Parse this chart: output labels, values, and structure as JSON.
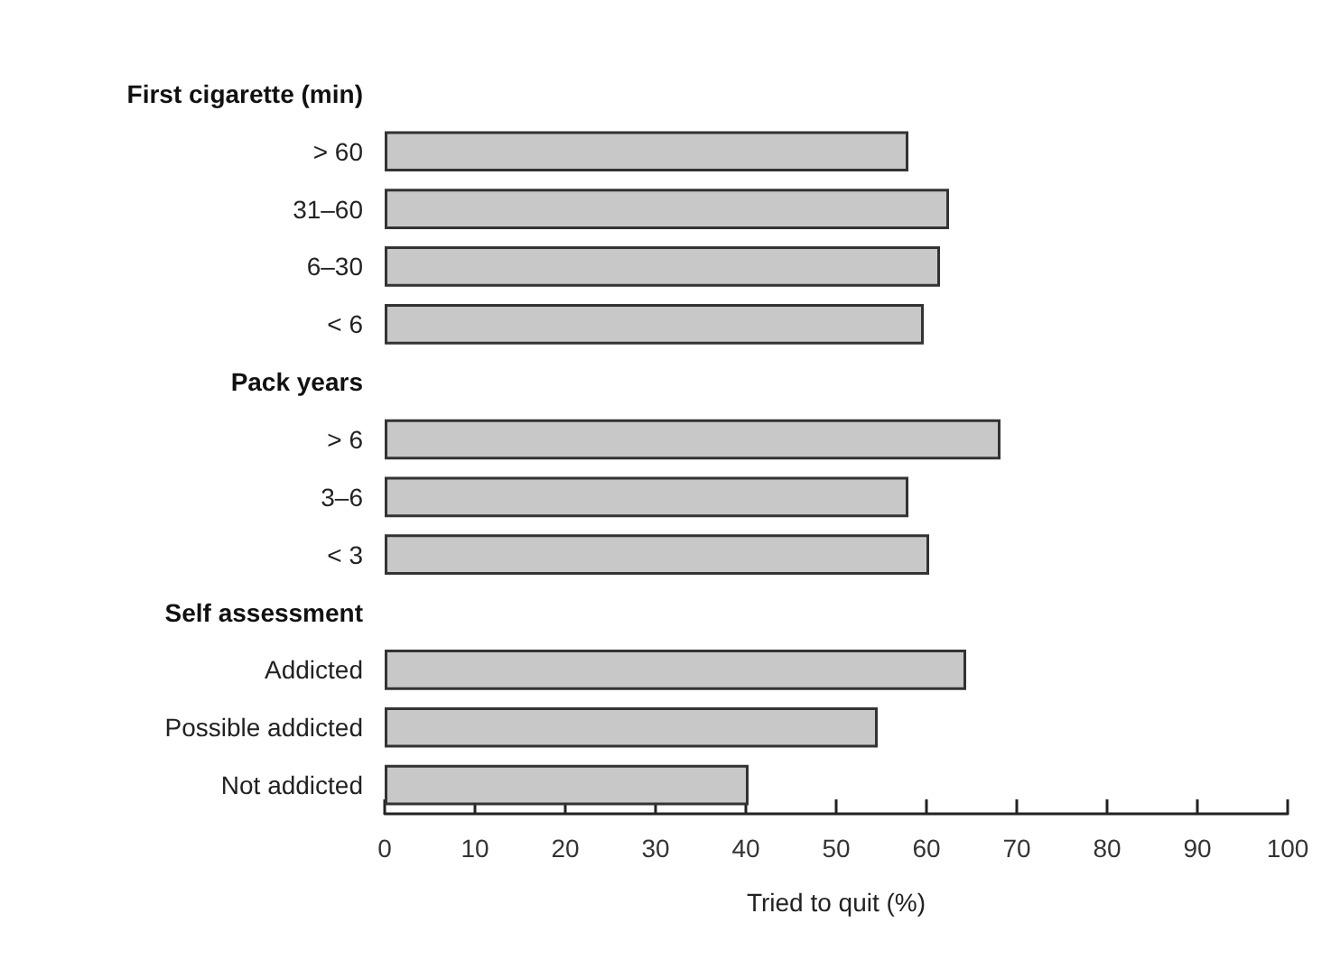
{
  "chart_data": {
    "type": "bar",
    "orientation": "horizontal",
    "xlabel": "Tried to quit (%)",
    "categories": [
      "First cigarette (min)",
      "> 60",
      "31–60",
      "6–30",
      "< 6",
      "Pack years",
      "> 6",
      "3–6",
      "< 3",
      "Self assessment",
      "Addicted",
      "Possible addicted",
      "Not addicted"
    ],
    "values": [
      null,
      58,
      62.5,
      61.5,
      59.7,
      null,
      68.2,
      58,
      60.3,
      null,
      64.4,
      54.6,
      40.3
    ],
    "color": "#c8c8c8",
    "xlim": [
      0,
      100
    ],
    "xticks": [
      0,
      10,
      20,
      30,
      40,
      50,
      60,
      70,
      80,
      90,
      100
    ],
    "grid": false
  }
}
